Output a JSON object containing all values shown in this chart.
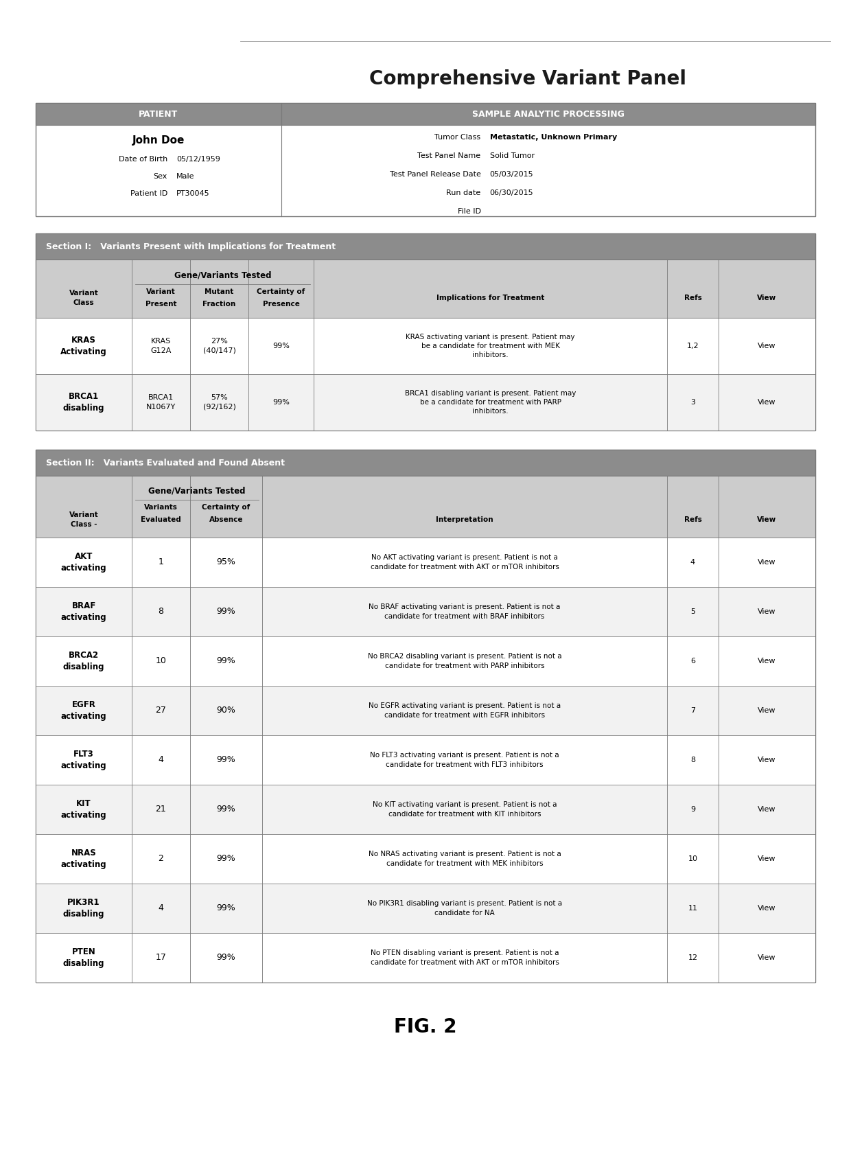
{
  "title": "Comprehensive Variant Panel",
  "patient": {
    "name": "John Doe",
    "lines": [
      [
        "Date of Birth",
        "05/12/1959"
      ],
      [
        "Sex",
        "Male"
      ],
      [
        "Patient ID",
        "PT30045"
      ]
    ]
  },
  "sample": {
    "lines": [
      [
        "Tumor Class",
        "Metastatic, Unknown Primary",
        true
      ],
      [
        "Test Panel Name",
        "Solid Tumor",
        false
      ],
      [
        "Test Panel Release Date",
        "05/03/2015",
        false
      ],
      [
        "Run date",
        "06/30/2015",
        false
      ],
      [
        "File ID",
        "",
        false
      ]
    ]
  },
  "section1_title": "Section I:   Variants Present with Implications for Treatment",
  "section1_col_headers": [
    "Variant\nClass",
    "Variant\nPresent",
    "Mutant\nFraction",
    "Certainty of\nPresence",
    "Implications for Treatment",
    "Refs",
    "View"
  ],
  "section1_rows": [
    [
      "KRAS\nActivating",
      "KRAS\nG12A",
      "27%\n(40/147)",
      "99%",
      "KRAS activating variant is present. Patient may\nbe a candidate for treatment with MEK\ninhibitors.",
      "1,2",
      "View"
    ],
    [
      "BRCA1\ndisabling",
      "BRCA1\nN1067Y",
      "57%\n(92/162)",
      "99%",
      "BRCA1 disabling variant is present. Patient may\nbe a candidate for treatment with PARP\ninhibitors.",
      "3",
      "View"
    ]
  ],
  "section2_title": "Section II:   Variants Evaluated and Found Absent",
  "section2_col_headers": [
    "Variant\nClass -",
    "Variants\nEvaluated",
    "Certainty of\nAbsence",
    "Interpretation",
    "Refs",
    "View"
  ],
  "section2_rows": [
    [
      "AKT\nactivating",
      "1",
      "95%",
      "No AKT activating variant is present. Patient is not a\ncandidate for treatment with AKT or mTOR inhibitors",
      "4",
      "View"
    ],
    [
      "BRAF\nactivating",
      "8",
      "99%",
      "No BRAF activating variant is present. Patient is not a\ncandidate for treatment with BRAF inhibitors",
      "5",
      "View"
    ],
    [
      "BRCA2\ndisabling",
      "10",
      "99%",
      "No BRCA2 disabling variant is present. Patient is not a\ncandidate for treatment with PARP inhibitors",
      "6",
      "View"
    ],
    [
      "EGFR\nactivating",
      "27",
      "90%",
      "No EGFR activating variant is present. Patient is not a\ncandidate for treatment with EGFR inhibitors",
      "7",
      "View"
    ],
    [
      "FLT3\nactivating",
      "4",
      "99%",
      "No FLT3 activating variant is present. Patient is not a\ncandidate for treatment with FLT3 inhibitors",
      "8",
      "View"
    ],
    [
      "KIT\nactivating",
      "21",
      "99%",
      "No KIT activating variant is present. Patient is not a\ncandidate for treatment with KIT inhibitors",
      "9",
      "View"
    ],
    [
      "NRAS\nactivating",
      "2",
      "99%",
      "No NRAS activating variant is present. Patient is not a\ncandidate for treatment with MEK inhibitors",
      "10",
      "View"
    ],
    [
      "PIK3R1\ndisabling",
      "4",
      "99%",
      "No PIK3R1 disabling variant is present. Patient is not a\ncandidate for NA",
      "11",
      "View"
    ],
    [
      "PTEN\ndisabling",
      "17",
      "99%",
      "No PTEN disabling variant is present. Patient is not a\ncandidate for treatment with AKT or mTOR inhibitors",
      "12",
      "View"
    ]
  ],
  "fig_label": "FIG. 2",
  "colors": {
    "dark_header": "#8C8C8C",
    "medium_header": "#B4B4B4",
    "light_subheader": "#CCCCCC",
    "row_white": "#FFFFFF",
    "row_light": "#F2F2F2",
    "outer_bg": "#E6E6E6",
    "border": "#787878",
    "text_dark": "#000000",
    "text_white": "#FFFFFF",
    "background": "#FFFFFF"
  }
}
